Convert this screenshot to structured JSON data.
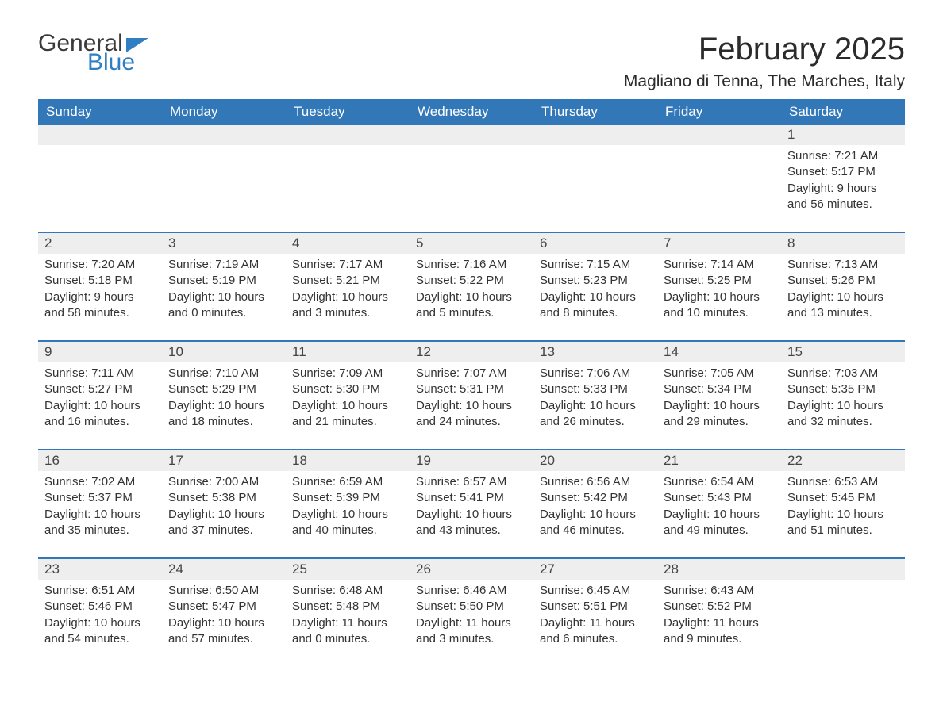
{
  "logo": {
    "text1": "General",
    "text2": "Blue"
  },
  "title": "February 2025",
  "location": "Magliano di Tenna, The Marches, Italy",
  "colors": {
    "header_bg": "#3278b8",
    "header_text": "#ffffff",
    "daynum_bg": "#eeeeee",
    "week_divider": "#3278b8",
    "logo_blue": "#2f7fc2",
    "body_text": "#333333",
    "page_bg": "#ffffff"
  },
  "typography": {
    "title_fontsize": 40,
    "location_fontsize": 21,
    "dow_fontsize": 17,
    "daynum_fontsize": 17,
    "body_fontsize": 15
  },
  "day_labels": [
    "Sunday",
    "Monday",
    "Tuesday",
    "Wednesday",
    "Thursday",
    "Friday",
    "Saturday"
  ],
  "weeks": [
    [
      {
        "blank": true
      },
      {
        "blank": true
      },
      {
        "blank": true
      },
      {
        "blank": true
      },
      {
        "blank": true
      },
      {
        "blank": true
      },
      {
        "n": "1",
        "sunrise": "Sunrise: 7:21 AM",
        "sunset": "Sunset: 5:17 PM",
        "day1": "Daylight: 9 hours",
        "day2": "and 56 minutes."
      }
    ],
    [
      {
        "n": "2",
        "sunrise": "Sunrise: 7:20 AM",
        "sunset": "Sunset: 5:18 PM",
        "day1": "Daylight: 9 hours",
        "day2": "and 58 minutes."
      },
      {
        "n": "3",
        "sunrise": "Sunrise: 7:19 AM",
        "sunset": "Sunset: 5:19 PM",
        "day1": "Daylight: 10 hours",
        "day2": "and 0 minutes."
      },
      {
        "n": "4",
        "sunrise": "Sunrise: 7:17 AM",
        "sunset": "Sunset: 5:21 PM",
        "day1": "Daylight: 10 hours",
        "day2": "and 3 minutes."
      },
      {
        "n": "5",
        "sunrise": "Sunrise: 7:16 AM",
        "sunset": "Sunset: 5:22 PM",
        "day1": "Daylight: 10 hours",
        "day2": "and 5 minutes."
      },
      {
        "n": "6",
        "sunrise": "Sunrise: 7:15 AM",
        "sunset": "Sunset: 5:23 PM",
        "day1": "Daylight: 10 hours",
        "day2": "and 8 minutes."
      },
      {
        "n": "7",
        "sunrise": "Sunrise: 7:14 AM",
        "sunset": "Sunset: 5:25 PM",
        "day1": "Daylight: 10 hours",
        "day2": "and 10 minutes."
      },
      {
        "n": "8",
        "sunrise": "Sunrise: 7:13 AM",
        "sunset": "Sunset: 5:26 PM",
        "day1": "Daylight: 10 hours",
        "day2": "and 13 minutes."
      }
    ],
    [
      {
        "n": "9",
        "sunrise": "Sunrise: 7:11 AM",
        "sunset": "Sunset: 5:27 PM",
        "day1": "Daylight: 10 hours",
        "day2": "and 16 minutes."
      },
      {
        "n": "10",
        "sunrise": "Sunrise: 7:10 AM",
        "sunset": "Sunset: 5:29 PM",
        "day1": "Daylight: 10 hours",
        "day2": "and 18 minutes."
      },
      {
        "n": "11",
        "sunrise": "Sunrise: 7:09 AM",
        "sunset": "Sunset: 5:30 PM",
        "day1": "Daylight: 10 hours",
        "day2": "and 21 minutes."
      },
      {
        "n": "12",
        "sunrise": "Sunrise: 7:07 AM",
        "sunset": "Sunset: 5:31 PM",
        "day1": "Daylight: 10 hours",
        "day2": "and 24 minutes."
      },
      {
        "n": "13",
        "sunrise": "Sunrise: 7:06 AM",
        "sunset": "Sunset: 5:33 PM",
        "day1": "Daylight: 10 hours",
        "day2": "and 26 minutes."
      },
      {
        "n": "14",
        "sunrise": "Sunrise: 7:05 AM",
        "sunset": "Sunset: 5:34 PM",
        "day1": "Daylight: 10 hours",
        "day2": "and 29 minutes."
      },
      {
        "n": "15",
        "sunrise": "Sunrise: 7:03 AM",
        "sunset": "Sunset: 5:35 PM",
        "day1": "Daylight: 10 hours",
        "day2": "and 32 minutes."
      }
    ],
    [
      {
        "n": "16",
        "sunrise": "Sunrise: 7:02 AM",
        "sunset": "Sunset: 5:37 PM",
        "day1": "Daylight: 10 hours",
        "day2": "and 35 minutes."
      },
      {
        "n": "17",
        "sunrise": "Sunrise: 7:00 AM",
        "sunset": "Sunset: 5:38 PM",
        "day1": "Daylight: 10 hours",
        "day2": "and 37 minutes."
      },
      {
        "n": "18",
        "sunrise": "Sunrise: 6:59 AM",
        "sunset": "Sunset: 5:39 PM",
        "day1": "Daylight: 10 hours",
        "day2": "and 40 minutes."
      },
      {
        "n": "19",
        "sunrise": "Sunrise: 6:57 AM",
        "sunset": "Sunset: 5:41 PM",
        "day1": "Daylight: 10 hours",
        "day2": "and 43 minutes."
      },
      {
        "n": "20",
        "sunrise": "Sunrise: 6:56 AM",
        "sunset": "Sunset: 5:42 PM",
        "day1": "Daylight: 10 hours",
        "day2": "and 46 minutes."
      },
      {
        "n": "21",
        "sunrise": "Sunrise: 6:54 AM",
        "sunset": "Sunset: 5:43 PM",
        "day1": "Daylight: 10 hours",
        "day2": "and 49 minutes."
      },
      {
        "n": "22",
        "sunrise": "Sunrise: 6:53 AM",
        "sunset": "Sunset: 5:45 PM",
        "day1": "Daylight: 10 hours",
        "day2": "and 51 minutes."
      }
    ],
    [
      {
        "n": "23",
        "sunrise": "Sunrise: 6:51 AM",
        "sunset": "Sunset: 5:46 PM",
        "day1": "Daylight: 10 hours",
        "day2": "and 54 minutes."
      },
      {
        "n": "24",
        "sunrise": "Sunrise: 6:50 AM",
        "sunset": "Sunset: 5:47 PM",
        "day1": "Daylight: 10 hours",
        "day2": "and 57 minutes."
      },
      {
        "n": "25",
        "sunrise": "Sunrise: 6:48 AM",
        "sunset": "Sunset: 5:48 PM",
        "day1": "Daylight: 11 hours",
        "day2": "and 0 minutes."
      },
      {
        "n": "26",
        "sunrise": "Sunrise: 6:46 AM",
        "sunset": "Sunset: 5:50 PM",
        "day1": "Daylight: 11 hours",
        "day2": "and 3 minutes."
      },
      {
        "n": "27",
        "sunrise": "Sunrise: 6:45 AM",
        "sunset": "Sunset: 5:51 PM",
        "day1": "Daylight: 11 hours",
        "day2": "and 6 minutes."
      },
      {
        "n": "28",
        "sunrise": "Sunrise: 6:43 AM",
        "sunset": "Sunset: 5:52 PM",
        "day1": "Daylight: 11 hours",
        "day2": "and 9 minutes."
      },
      {
        "blank": true
      }
    ]
  ]
}
